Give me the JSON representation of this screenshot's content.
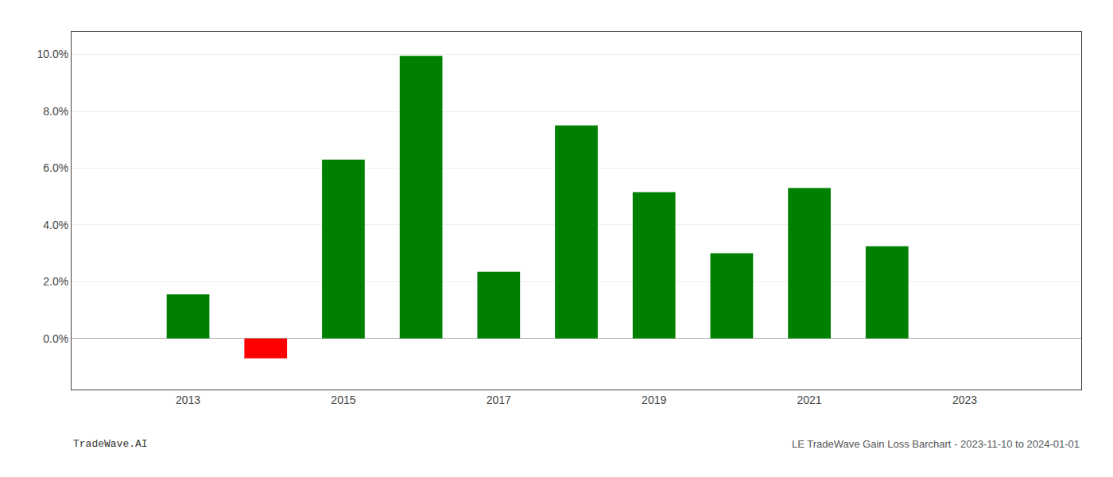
{
  "chart_data": {
    "type": "bar",
    "x": [
      2013,
      2014,
      2015,
      2016,
      2017,
      2018,
      2019,
      2020,
      2021,
      2022
    ],
    "values": [
      0.0155,
      -0.007,
      0.063,
      0.0995,
      0.0235,
      0.075,
      0.0515,
      0.03,
      0.053,
      0.0325
    ],
    "colors": [
      "#008000",
      "#ff0000",
      "#008000",
      "#008000",
      "#008000",
      "#008000",
      "#008000",
      "#008000",
      "#008000",
      "#008000"
    ],
    "xlim": [
      2011.5,
      2024.5
    ],
    "xticks": [
      2013,
      2015,
      2017,
      2019,
      2021,
      2023
    ],
    "ylim": [
      -0.018,
      0.108
    ],
    "yticks": [
      {
        "value": 0.0,
        "label": "0.0%"
      },
      {
        "value": 0.02,
        "label": "2.0%"
      },
      {
        "value": 0.04,
        "label": "4.0%"
      },
      {
        "value": 0.06,
        "label": "6.0%"
      },
      {
        "value": 0.08,
        "label": "8.0%"
      },
      {
        "value": 0.1,
        "label": "10.0%"
      }
    ],
    "grid": "y",
    "annotations": [
      "TradeWave.AI",
      "LE TradeWave Gain Loss Barchart - 2023-11-10 to 2024-01-01"
    ]
  }
}
